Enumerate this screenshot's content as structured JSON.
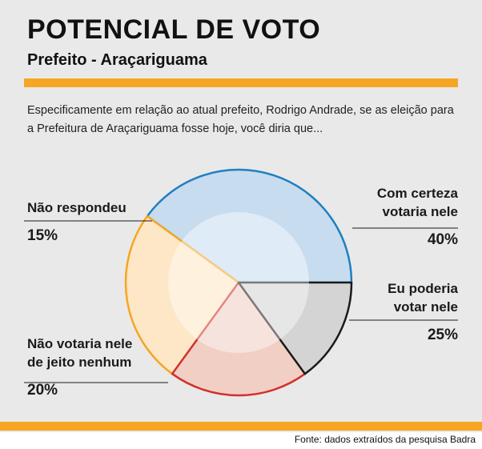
{
  "header": {
    "title": "POTENCIAL DE VOTO",
    "subtitle": "Prefeito - Araçariguama",
    "question": "Especificamente em relação ao atual prefeito, Rodrigo Andrade, se as eleição para a Prefeitura de Araçariguama fosse hoje, você diria que..."
  },
  "colors": {
    "accent": "#f5a623",
    "panel": "#e9e9e9"
  },
  "chart_data": {
    "type": "pie",
    "title": "POTENCIAL DE VOTO",
    "subtitle": "Prefeito - Araçariguama",
    "slices": [
      {
        "label": "Com certeza votaria nele",
        "value": 40,
        "display": "40%",
        "fill": "#c8dcef",
        "stroke": "#1f7fc0"
      },
      {
        "label": "Eu poderia votar nele",
        "value": 25,
        "display": "25%",
        "fill": "#fde7c6",
        "stroke": "#f5a623"
      },
      {
        "label": "Não votaria nele de jeito nenhum",
        "value": 20,
        "display": "20%",
        "fill": "#f2cfc5",
        "stroke": "#d0312d"
      },
      {
        "label": "Não respondeu",
        "value": 15,
        "display": "15%",
        "fill": "#d4d4d4",
        "stroke": "#1a1a1a"
      }
    ]
  },
  "labels": {
    "com_certeza_line1": "Com certeza",
    "com_certeza_line2": "votaria nele",
    "poderia_line1": "Eu poderia",
    "poderia_line2": "votar nele",
    "nao_votaria_line1": "Não votaria nele",
    "nao_votaria_line2": "de jeito nenhum",
    "nao_respondeu": "Não respondeu"
  },
  "footer": {
    "source": "Fonte: dados extraídos da pesquisa Badra"
  }
}
